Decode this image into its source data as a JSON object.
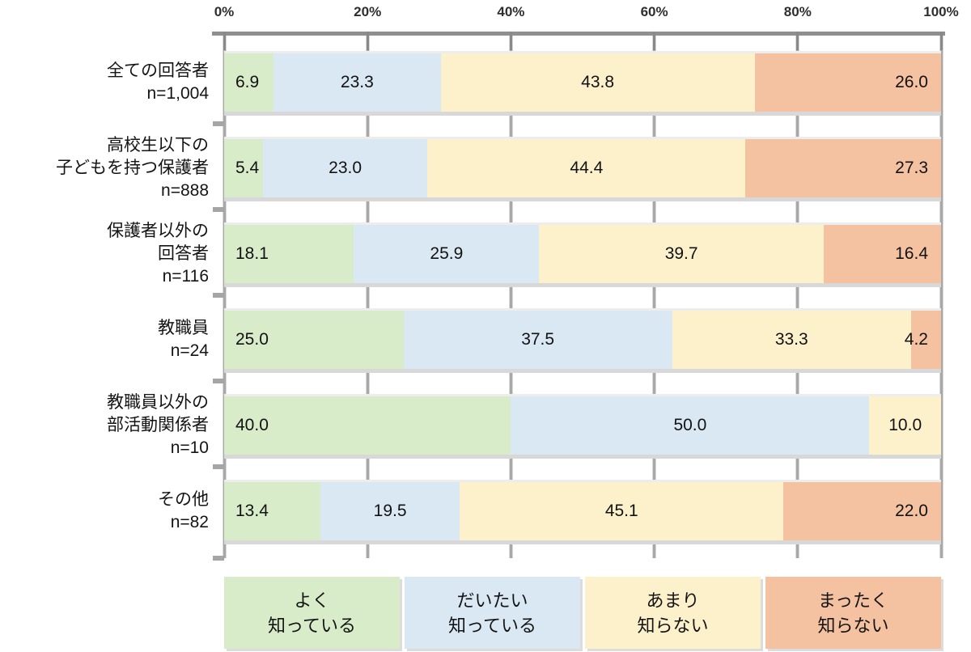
{
  "chart_data": {
    "type": "bar",
    "orientation": "horizontal",
    "stacked": true,
    "value_unit": "percent",
    "grid": true,
    "axis": {
      "position": "top",
      "min": 0,
      "max": 100,
      "ticks": [
        "0%",
        "20%",
        "40%",
        "60%",
        "80%",
        "100%"
      ]
    },
    "categories": [
      {
        "label_lines": [
          "全ての回答者",
          "n=1,004"
        ]
      },
      {
        "label_lines": [
          "高校生以下の",
          "子どもを持つ保護者",
          "n=888"
        ]
      },
      {
        "label_lines": [
          "保護者以外の",
          "回答者",
          "n=116"
        ]
      },
      {
        "label_lines": [
          "教職員",
          "n=24"
        ]
      },
      {
        "label_lines": [
          "教職員以外の",
          "部活動関係者",
          "n=10"
        ]
      },
      {
        "label_lines": [
          "その他",
          "n=82"
        ]
      }
    ],
    "series": [
      {
        "name": "よく知っている",
        "color": "#d9ecca",
        "label_align": "start",
        "values": [
          6.9,
          5.4,
          18.1,
          25.0,
          40.0,
          13.4
        ]
      },
      {
        "name": "だいたい知っている",
        "color": "#dae8f4",
        "label_align": "center",
        "values": [
          23.3,
          23.0,
          25.9,
          37.5,
          50.0,
          19.5
        ]
      },
      {
        "name": "あまり知らない",
        "color": "#fdf1cc",
        "label_align": "center",
        "values": [
          43.8,
          44.4,
          39.7,
          33.3,
          10.0,
          45.1
        ]
      },
      {
        "name": "まったく知らない",
        "color": "#f4c2a1",
        "label_align": "end",
        "values": [
          26.0,
          27.3,
          16.4,
          4.2,
          0,
          22.0
        ]
      }
    ],
    "legend": {
      "position": "bottom",
      "items": [
        {
          "label_lines": [
            "よく",
            "知っている"
          ],
          "color": "#d9ecca"
        },
        {
          "label_lines": [
            "だいたい",
            "知っている"
          ],
          "color": "#dae8f4"
        },
        {
          "label_lines": [
            "あまり",
            "知らない"
          ],
          "color": "#fdf1cc"
        },
        {
          "label_lines": [
            "まったく",
            "知らない"
          ],
          "color": "#f4c2a1"
        }
      ]
    },
    "style_colors": {
      "axis_line": "#8f8f8f",
      "tick": "#898989",
      "gridline": "#a8a8a8",
      "bar_shadow": "#d8d8d8",
      "text": "#141414"
    }
  }
}
